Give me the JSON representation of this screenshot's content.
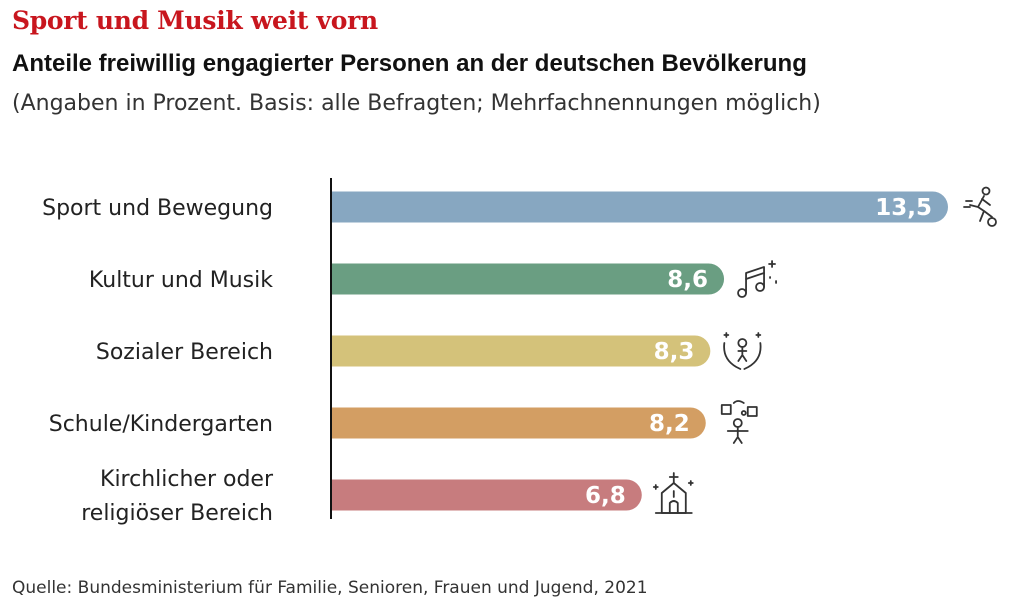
{
  "headline": "Sport und Musik weit vorn",
  "subtitle": "Anteile freiwillig engagierter Personen an der deutschen Bevölkerung",
  "note": "(Angaben in Prozent. Basis: alle Befragten; Mehrfachnennungen möglich)",
  "source": "Quelle: Bundesministerium für Familie, Senioren, Frauen und Jugend, 2021",
  "chart_data": {
    "type": "bar",
    "orientation": "horizontal",
    "title": "Anteile freiwillig engagierter Personen an der deutschen Bevölkerung",
    "xlabel": "",
    "ylabel": "",
    "grid": false,
    "categories": [
      [
        "Sport und Bewegung"
      ],
      [
        "Kultur und Musik"
      ],
      [
        "Sozialer Bereich"
      ],
      [
        "Schule/Kindergarten"
      ],
      [
        "Kirchlicher oder",
        "religiöser Bereich"
      ]
    ],
    "values": [
      13.5,
      8.6,
      8.3,
      8.2,
      6.8
    ],
    "value_labels": [
      "13,5",
      "8,6",
      "8,3",
      "8,2",
      "6,8"
    ],
    "colors": [
      "#87a7c1",
      "#6a9e82",
      "#d4c27a",
      "#d39e63",
      "#c77c7e"
    ],
    "icons": [
      "soccer-player-icon",
      "music-notes-icon",
      "caring-hands-icon",
      "school-child-icon",
      "church-icon"
    ],
    "xlim": [
      0,
      13.5
    ]
  }
}
